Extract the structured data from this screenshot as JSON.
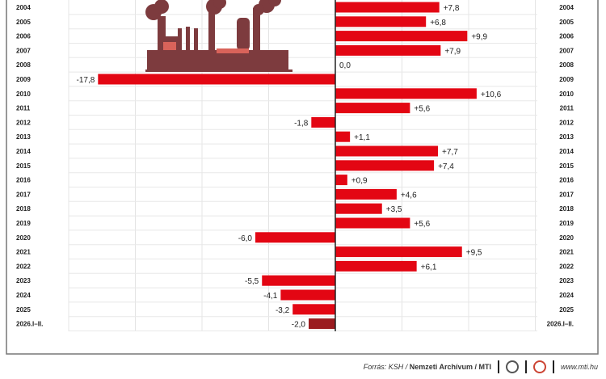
{
  "chart_data": {
    "type": "bar",
    "orientation": "horizontal",
    "categories": [
      "2004",
      "2005",
      "2006",
      "2007",
      "2008",
      "2009",
      "2010",
      "2011",
      "2012",
      "2013",
      "2014",
      "2015",
      "2016",
      "2017",
      "2018",
      "2019",
      "2020",
      "2021",
      "2022",
      "2023",
      "2024",
      "2025",
      "2026.I–II."
    ],
    "values": [
      7.8,
      6.8,
      9.9,
      7.9,
      0.0,
      -17.8,
      10.6,
      5.6,
      -1.8,
      1.1,
      7.7,
      7.4,
      0.9,
      4.6,
      3.5,
      5.6,
      -6.0,
      9.5,
      6.1,
      -5.5,
      -4.1,
      -3.2,
      -2.0
    ],
    "labels": [
      "+7,8",
      "+6,8",
      "+9,9",
      "+7,9",
      "0,0",
      "-17,8",
      "+10,6",
      "+5,6",
      "-1,8",
      "+1,1",
      "+7,7",
      "+7,4",
      "+0,9",
      "+4,6",
      "+3,5",
      "+5,6",
      "-6,0",
      "+9,5",
      "+6,1",
      "-5,5",
      "-4,1",
      "-3,2",
      "-2,0"
    ],
    "xlim": [
      -20,
      15
    ],
    "grid": true,
    "colors": {
      "bar": "#e30613",
      "last_bar": "#9b1b1f",
      "factory": "#7d3b3e",
      "factory_light": "#d9635a"
    }
  },
  "footer": {
    "source_prefix": "Forrás: KSH / ",
    "source_bold": "Nemzeti Archívum / MTI",
    "url": "www.mti.hu"
  }
}
